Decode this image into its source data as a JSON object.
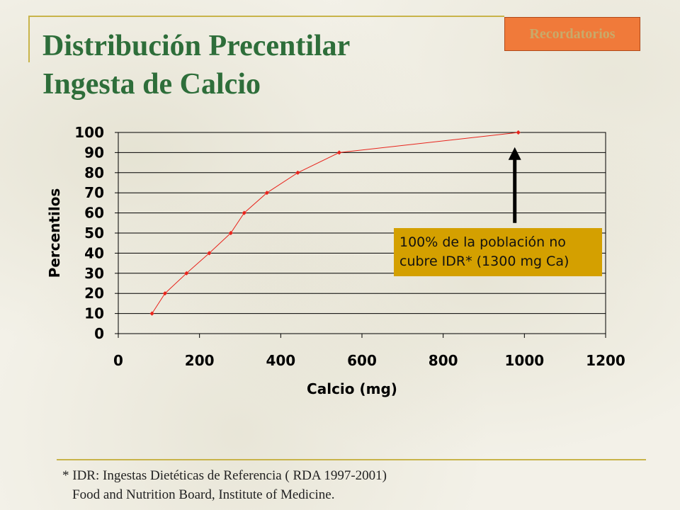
{
  "slide": {
    "title_line1": "Distribución Precentilar",
    "title_line2": "Ingesta de Calcio",
    "nav_button": "Recordatorios",
    "annotation_line1": "100% de la población no",
    "annotation_line2": "cubre IDR* (1300 mg Ca)",
    "footnote_line1": "* IDR: Ingestas Dietéticas de Referencia ( RDA 1997-2001)",
    "footnote_line2": "Food and Nutrition Board, Institute of Medicine.",
    "colors": {
      "title": "#2e6e3a",
      "series": "#e8241c",
      "annotation_bg": "#d4a000",
      "button_bg": "#f07a3a"
    }
  },
  "chart_data": {
    "type": "line",
    "title": "",
    "xlabel": "Calcio (mg)",
    "ylabel": "Percentilos",
    "xlim": [
      0,
      1200
    ],
    "ylim": [
      0,
      100
    ],
    "xticks": [
      0,
      200,
      400,
      600,
      800,
      1000,
      1200
    ],
    "yticks": [
      0,
      10,
      20,
      30,
      40,
      50,
      60,
      70,
      80,
      90,
      100
    ],
    "grid": "horizontal",
    "legend": "none",
    "series": [
      {
        "x": [
          83,
          115,
          168,
          224,
          277,
          310,
          366,
          442,
          544,
          985
        ],
        "y": [
          10,
          20,
          30,
          40,
          50,
          60,
          70,
          80,
          90,
          100
        ]
      }
    ],
    "arrow": {
      "x": 985,
      "y_from": 55,
      "y_to": 92
    }
  }
}
